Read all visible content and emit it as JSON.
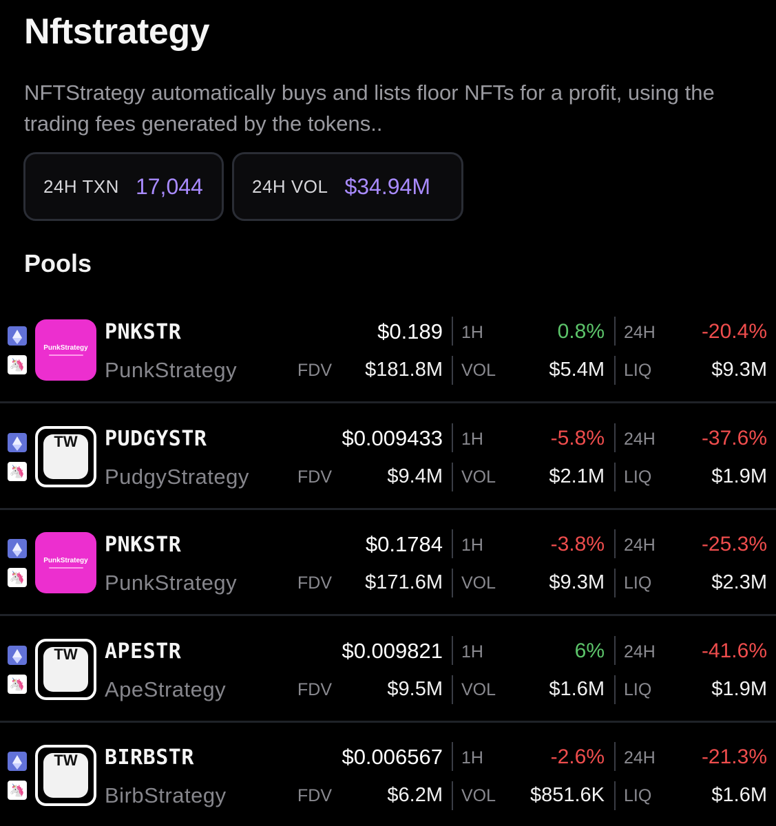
{
  "header": {
    "title": "Nftstrategy",
    "description": "NFTStrategy automatically buys and lists floor NFTs for a profit, using the trading fees generated by the tokens.."
  },
  "stats": [
    {
      "label": "24H TXN",
      "value": "17,044"
    },
    {
      "label": "24H VOL",
      "value": "$34.94M"
    }
  ],
  "section_title": "Pools",
  "labels": {
    "fdv": "FDV",
    "h1": "1H",
    "vol": "VOL",
    "h24": "24H",
    "liq": "LIQ"
  },
  "colors": {
    "accent": "#a98bff",
    "positive": "#5cc46a",
    "negative": "#ef4d4d",
    "punk_logo": "#ec2fcf"
  },
  "pools": [
    {
      "symbol": "PNKSTR",
      "name": "PunkStrategy",
      "logo": "punk",
      "logo_text": "PunkStrategy",
      "price": "$0.189",
      "fdv": "$181.8M",
      "change_1h": "0.8%",
      "change_1h_dir": "up",
      "vol": "$5.4M",
      "change_24h": "-20.4%",
      "liq": "$9.3M"
    },
    {
      "symbol": "PUDGYSTR",
      "name": "PudgyStrategy",
      "logo": "tw",
      "logo_text": "TW",
      "price": "$0.009433",
      "fdv": "$9.4M",
      "change_1h": "-5.8%",
      "change_1h_dir": "down",
      "vol": "$2.1M",
      "change_24h": "-37.6%",
      "liq": "$1.9M"
    },
    {
      "symbol": "PNKSTR",
      "name": "PunkStrategy",
      "logo": "punk",
      "logo_text": "PunkStrategy",
      "price": "$0.1784",
      "fdv": "$171.6M",
      "change_1h": "-3.8%",
      "change_1h_dir": "down",
      "vol": "$9.3M",
      "change_24h": "-25.3%",
      "liq": "$2.3M"
    },
    {
      "symbol": "APESTR",
      "name": "ApeStrategy",
      "logo": "tw",
      "logo_text": "TW",
      "price": "$0.009821",
      "fdv": "$9.5M",
      "change_1h": "6%",
      "change_1h_dir": "up",
      "vol": "$1.6M",
      "change_24h": "-41.6%",
      "liq": "$1.9M"
    },
    {
      "symbol": "BIRBSTR",
      "name": "BirbStrategy",
      "logo": "tw",
      "logo_text": "TW",
      "price": "$0.006567",
      "fdv": "$6.2M",
      "change_1h": "-2.6%",
      "change_1h_dir": "down",
      "vol": "$851.6K",
      "change_24h": "-21.3%",
      "liq": "$1.6M"
    }
  ]
}
